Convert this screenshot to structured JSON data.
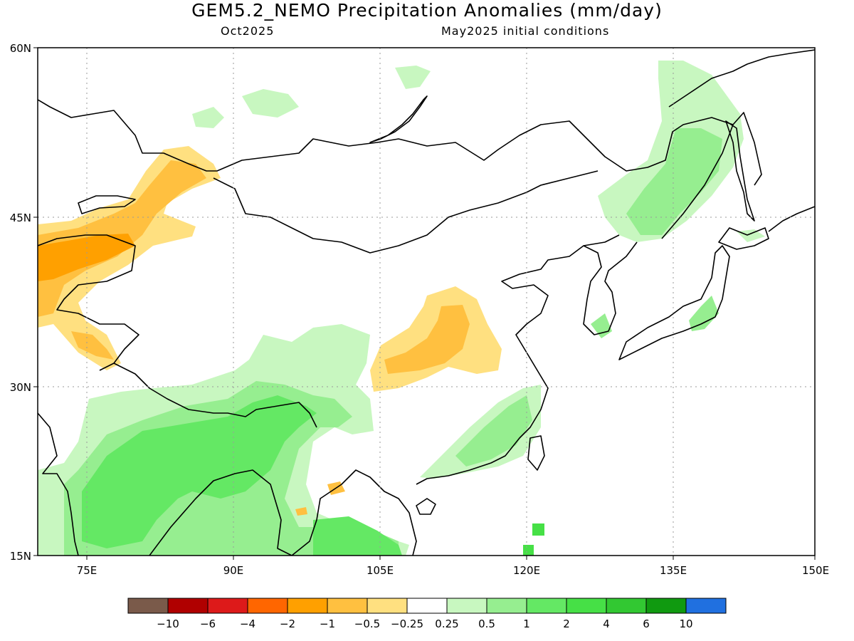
{
  "header": {
    "title": "GEM5.2_NEMO Precipitation Anomalies (mm/day)",
    "subtitle_left": "Oct2025",
    "subtitle_right": "May2025 initial conditions"
  },
  "map": {
    "lat_labels": [
      "60N",
      "45N",
      "30N",
      "15N"
    ],
    "lon_labels": [
      "75E",
      "90E",
      "105E",
      "120E",
      "135E",
      "150E"
    ],
    "lat_range": [
      15,
      60
    ],
    "lon_range": [
      70,
      150
    ],
    "grid": "dotted"
  },
  "legend": {
    "colors": [
      "#7a5a4a",
      "#b00000",
      "#dd1a1a",
      "#ff6600",
      "#ffa000",
      "#ffc040",
      "#ffe080",
      "#ffffff",
      "#c8f7c0",
      "#96ee90",
      "#64e864",
      "#46e046",
      "#32c832",
      "#109a10",
      "#2070e0"
    ],
    "labels": [
      "-10",
      "-6",
      "-4",
      "-2",
      "-1",
      "-0.5",
      "-0.25",
      "0.25",
      "0.5",
      "1",
      "2",
      "4",
      "6",
      "10"
    ]
  },
  "colors": {
    "dry_light": "#ffe080",
    "dry_mid": "#ffc040",
    "dry_dark": "#ffa000",
    "wet_light": "#c8f7c0",
    "wet_mid": "#96ee90",
    "wet_strong": "#64e864",
    "wet_vstrong": "#46e046"
  }
}
